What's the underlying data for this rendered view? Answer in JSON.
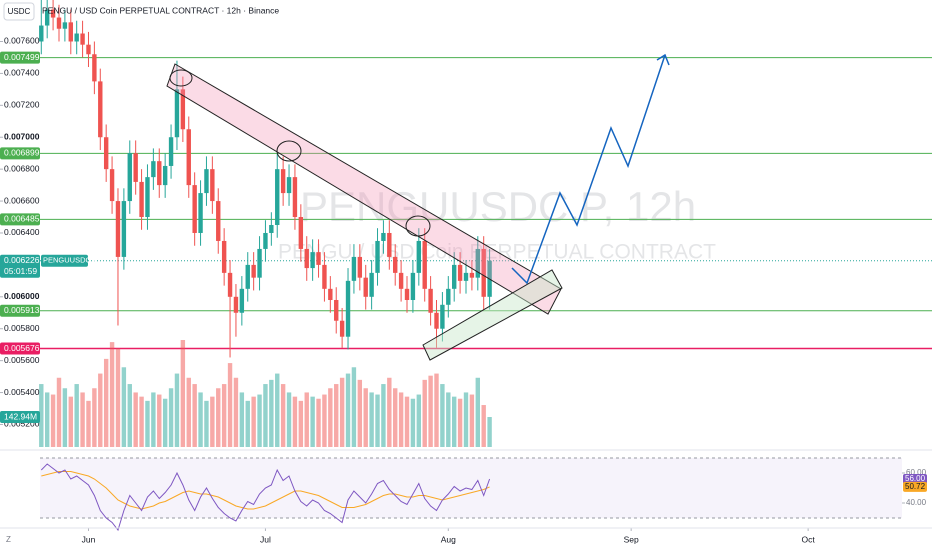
{
  "chart_data": {
    "type": "candlestick",
    "title": "PENGU / USD Coin PERPETUAL CONTRACT · 12h · Binance",
    "currency": "USDC",
    "watermark": "PENGUUSDC.P, 12h",
    "watermark_subtitle": "PENGU / USD Coin PERPETUAL CONTRACT",
    "symbol": "PENGUUSDC.P",
    "countdown": "05:01:59",
    "corner_label": "Z",
    "x": [
      -8,
      -7,
      -6,
      -5,
      -4,
      -3,
      -2,
      -1,
      0,
      1,
      2,
      3,
      4,
      5,
      6,
      7,
      8,
      9,
      10,
      11,
      12,
      13,
      14,
      15,
      16,
      17,
      18,
      19,
      20,
      21,
      22,
      23,
      24,
      25,
      26,
      27,
      28,
      29,
      30,
      31,
      32,
      33,
      34,
      35,
      36,
      37,
      38,
      39,
      40,
      41,
      42,
      43,
      44,
      45,
      46,
      47,
      48,
      49,
      50,
      51,
      52,
      53,
      54,
      55,
      56,
      57,
      58,
      59,
      60,
      61,
      62,
      63,
      64,
      65,
      66,
      67,
      68
    ],
    "xlim": [
      -15,
      143
    ],
    "xticks": [
      {
        "value": 0,
        "label": "Jun"
      },
      {
        "value": 30,
        "label": "Jul"
      },
      {
        "value": 61,
        "label": "Aug"
      },
      {
        "value": 92,
        "label": "Sep"
      },
      {
        "value": 122,
        "label": "Oct"
      }
    ],
    "open": [
      0.0076,
      0.0077,
      0.0078,
      0.00775,
      0.00768,
      0.00772,
      0.0076,
      0.00765,
      0.00758,
      0.00752,
      0.00735,
      0.007,
      0.0068,
      0.0066,
      0.00625,
      0.0066,
      0.0069,
      0.00672,
      0.0065,
      0.00675,
      0.00685,
      0.0067,
      0.00682,
      0.007,
      0.0073,
      0.00705,
      0.0067,
      0.0064,
      0.00665,
      0.0068,
      0.0066,
      0.00635,
      0.00615,
      0.006,
      0.0059,
      0.00605,
      0.0062,
      0.00612,
      0.0063,
      0.0064,
      0.00645,
      0.0068,
      0.00665,
      0.00675,
      0.0065,
      0.0063,
      0.00618,
      0.00628,
      0.0062,
      0.00605,
      0.00598,
      0.00585,
      0.00575,
      0.0061,
      0.00625,
      0.00612,
      0.006,
      0.00615,
      0.00635,
      0.0064,
      0.00625,
      0.00615,
      0.00605,
      0.00598,
      0.00615,
      0.00635,
      0.00605,
      0.0059,
      0.0058,
      0.00595,
      0.00605,
      0.0062,
      0.0061,
      0.00615,
      0.00612,
      0.0063,
      0.006
    ],
    "high": [
      0.0079,
      0.00788,
      0.00788,
      0.00783,
      0.0078,
      0.0078,
      0.00773,
      0.00773,
      0.00766,
      0.0076,
      0.00743,
      0.00708,
      0.00688,
      0.00668,
      0.00668,
      0.00698,
      0.00698,
      0.0068,
      0.00683,
      0.00693,
      0.00693,
      0.0069,
      0.00708,
      0.00748,
      0.00738,
      0.00713,
      0.00678,
      0.00673,
      0.00688,
      0.00688,
      0.00668,
      0.00643,
      0.00623,
      0.00608,
      0.00613,
      0.00628,
      0.00628,
      0.00638,
      0.00648,
      0.00653,
      0.0069,
      0.00688,
      0.00683,
      0.00683,
      0.00658,
      0.00638,
      0.00636,
      0.00636,
      0.00628,
      0.00613,
      0.00606,
      0.00593,
      0.00618,
      0.00633,
      0.00633,
      0.0062,
      0.00623,
      0.00643,
      0.00648,
      0.00648,
      0.00633,
      0.00623,
      0.00613,
      0.00623,
      0.00643,
      0.00643,
      0.00613,
      0.00598,
      0.00603,
      0.00613,
      0.00628,
      0.00628,
      0.00623,
      0.00623,
      0.00638,
      0.00638,
      0.0063
    ],
    "low": [
      0.00752,
      0.00762,
      0.00767,
      0.0076,
      0.0076,
      0.00752,
      0.00752,
      0.0075,
      0.00744,
      0.00727,
      0.00692,
      0.00672,
      0.00652,
      0.00582,
      0.00617,
      0.00652,
      0.00664,
      0.00642,
      0.00642,
      0.00667,
      0.00662,
      0.00662,
      0.00674,
      0.00692,
      0.00697,
      0.00662,
      0.00632,
      0.00632,
      0.00657,
      0.00652,
      0.00627,
      0.00607,
      0.00562,
      0.00575,
      0.00582,
      0.00597,
      0.00604,
      0.00604,
      0.00622,
      0.00632,
      0.00637,
      0.00657,
      0.00657,
      0.00642,
      0.00622,
      0.0061,
      0.0061,
      0.00612,
      0.00597,
      0.0059,
      0.00577,
      0.00568,
      0.00567,
      0.00602,
      0.00604,
      0.00592,
      0.00592,
      0.00607,
      0.00627,
      0.00617,
      0.00607,
      0.00597,
      0.0059,
      0.0059,
      0.00607,
      0.00597,
      0.00582,
      0.00568,
      0.00572,
      0.00587,
      0.00597,
      0.00602,
      0.00602,
      0.00604,
      0.00604,
      0.00592,
      0.00592
    ],
    "close": [
      0.0077,
      0.0078,
      0.00775,
      0.00768,
      0.00772,
      0.0076,
      0.00765,
      0.00758,
      0.00752,
      0.00735,
      0.007,
      0.0068,
      0.0066,
      0.00625,
      0.0066,
      0.0069,
      0.00672,
      0.0065,
      0.00675,
      0.00685,
      0.0067,
      0.00682,
      0.007,
      0.0073,
      0.00705,
      0.0067,
      0.0064,
      0.00665,
      0.0068,
      0.0066,
      0.00635,
      0.00615,
      0.006,
      0.0059,
      0.00605,
      0.0062,
      0.00612,
      0.0063,
      0.0064,
      0.00645,
      0.0068,
      0.00665,
      0.00675,
      0.0065,
      0.0063,
      0.00618,
      0.00628,
      0.0062,
      0.00605,
      0.00598,
      0.00585,
      0.00575,
      0.0061,
      0.00625,
      0.00612,
      0.006,
      0.00615,
      0.00635,
      0.0064,
      0.00625,
      0.00615,
      0.00605,
      0.00598,
      0.00615,
      0.00635,
      0.00605,
      0.0059,
      0.0058,
      0.00595,
      0.00605,
      0.0062,
      0.0061,
      0.00615,
      0.00612,
      0.0063,
      0.006,
      0.006226
    ],
    "up_color": "#26a69a",
    "down_color": "#ef5350",
    "ylim": [
      0.00504,
      0.00786
    ],
    "yticks": [
      {
        "value": 0.0076,
        "label": "0.007600"
      },
      {
        "value": 0.0074,
        "label": "0.007400"
      },
      {
        "value": 0.0072,
        "label": "0.007200"
      },
      {
        "value": 0.007,
        "label": "0.007000"
      },
      {
        "value": 0.0068,
        "label": "0.006800"
      },
      {
        "value": 0.0066,
        "label": "0.006600"
      },
      {
        "value": 0.0064,
        "label": "0.006400"
      },
      {
        "value": 0.006,
        "label": "0.006000"
      },
      {
        "value": 0.0058,
        "label": "0.005800"
      },
      {
        "value": 0.0056,
        "label": "0.005600"
      },
      {
        "value": 0.0054,
        "label": "0.005400"
      },
      {
        "value": 0.0052,
        "label": "0.005200"
      }
    ],
    "levels": [
      0.007499,
      0.006899,
      0.006485,
      0.005913,
      0.005676
    ],
    "level_colors": [
      "#4caf50",
      "#4caf50",
      "#4caf50",
      "#4caf50",
      "#e91e63"
    ],
    "volume": {
      "values": [
        300,
        260,
        250,
        330,
        280,
        240,
        300,
        260,
        220,
        280,
        350,
        420,
        500,
        470,
        380,
        300,
        260,
        240,
        220,
        260,
        250,
        230,
        280,
        350,
        510,
        330,
        300,
        260,
        220,
        240,
        280,
        300,
        400,
        330,
        260,
        220,
        240,
        250,
        300,
        320,
        350,
        300,
        260,
        240,
        220,
        260,
        240,
        230,
        250,
        280,
        300,
        330,
        350,
        380,
        320,
        280,
        260,
        250,
        300,
        330,
        280,
        260,
        240,
        230,
        250,
        320,
        340,
        350,
        300,
        260,
        240,
        230,
        260,
        250,
        330,
        200,
        142.94
      ],
      "ylim": [
        0,
        510
      ],
      "last_label": "142.94M"
    },
    "rsi": {
      "values": [
        62,
        66,
        63,
        60,
        62,
        56,
        58,
        55,
        52,
        45,
        35,
        30,
        27,
        22,
        35,
        45,
        40,
        35,
        44,
        48,
        43,
        47,
        52,
        60,
        52,
        42,
        35,
        44,
        50,
        43,
        37,
        33,
        30,
        28,
        35,
        41,
        39,
        46,
        50,
        52,
        62,
        55,
        58,
        48,
        41,
        38,
        42,
        40,
        35,
        33,
        30,
        27,
        42,
        48,
        44,
        40,
        46,
        53,
        55,
        49,
        45,
        41,
        39,
        46,
        53,
        43,
        38,
        35,
        42,
        46,
        51,
        48,
        50,
        49,
        55,
        45,
        56
      ],
      "ma": [
        58,
        59,
        60,
        61,
        61,
        61,
        60,
        59,
        58,
        56,
        53,
        50,
        46,
        42,
        40,
        38,
        37,
        36,
        37,
        38,
        40,
        41,
        43,
        45,
        47,
        48,
        47,
        46,
        46,
        45,
        44,
        42,
        40,
        38,
        37,
        36,
        36,
        37,
        38,
        40,
        42,
        44,
        46,
        48,
        48,
        47,
        46,
        45,
        43,
        41,
        39,
        37,
        37,
        37,
        38,
        39,
        41,
        43,
        45,
        46,
        46,
        45,
        44,
        44,
        45,
        45,
        44,
        43,
        42,
        43,
        44,
        45,
        46,
        47,
        48,
        49,
        50.72
      ],
      "ylim": [
        26,
        74
      ],
      "yticks": [
        {
          "value": 60,
          "label": "60.00"
        },
        {
          "value": 40,
          "label": "40.00"
        }
      ],
      "band": [
        30,
        70
      ],
      "value_label": "56.00",
      "ma_label": "50.72",
      "color": "#7e57c2",
      "ma_color": "#f9a825"
    }
  }
}
